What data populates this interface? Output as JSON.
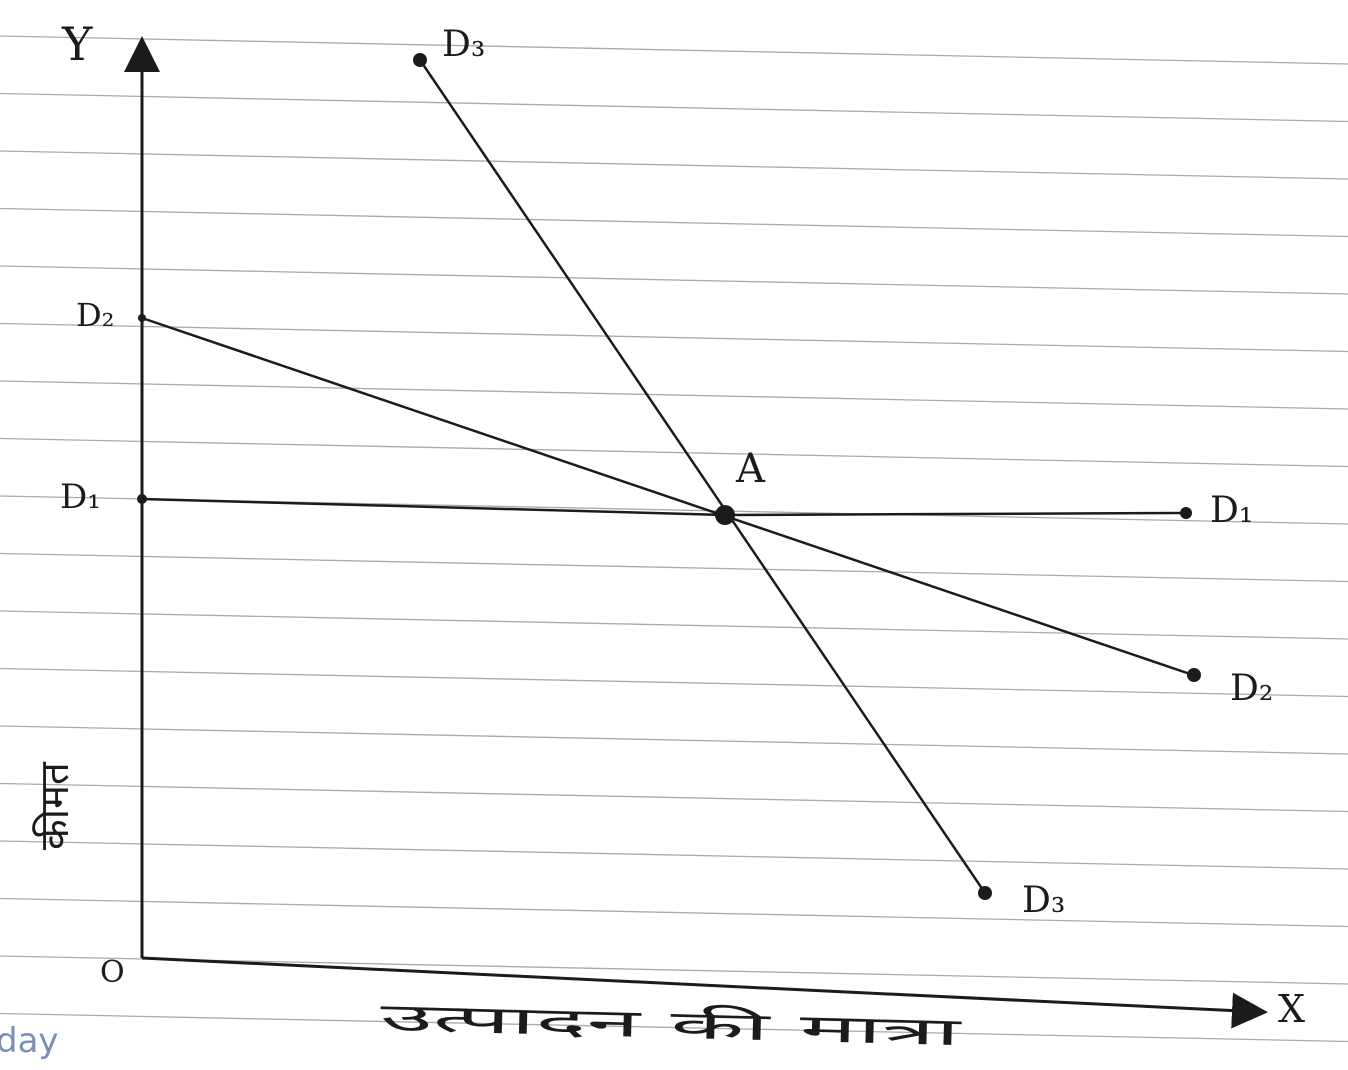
{
  "axes": {
    "y_label": "Y",
    "x_label": "X",
    "origin_label": "O",
    "y_axis_title": "कीमत",
    "x_axis_title": "उत्पादन की मात्रा"
  },
  "curves": [
    {
      "start_label": "D₁",
      "end_label": "D₁"
    },
    {
      "start_label": "D₂",
      "end_label": "D₂"
    },
    {
      "start_label": "D₃",
      "end_label": "D₃"
    }
  ],
  "intersection_label": "A",
  "paper": {
    "footer_fragment": "day"
  },
  "colors": {
    "ink": "#1b1b1b",
    "rule": "#8e8e8e",
    "paper": "#ffffff",
    "paper_print": "#7a8fb8"
  }
}
